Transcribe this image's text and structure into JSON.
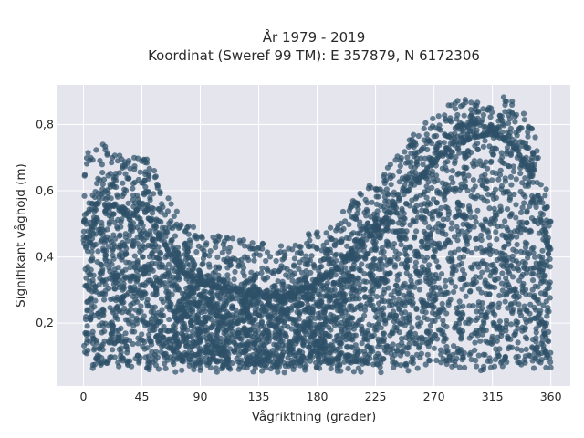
{
  "chart_data": {
    "type": "scatter",
    "title": "År 1979 - 2019",
    "subtitle": "Koordinat (Sweref 99 TM): E 357879, N 6172306",
    "xlabel": "Vågriktning (grader)",
    "ylabel": "Signifikant våghöjd (m)",
    "xlim": [
      -20,
      375
    ],
    "ylim": [
      0.01,
      0.92
    ],
    "xticks": [
      0,
      45,
      90,
      135,
      180,
      225,
      270,
      315,
      360
    ],
    "xtick_labels": [
      "0",
      "45",
      "90",
      "135",
      "180",
      "225",
      "270",
      "315",
      "360"
    ],
    "yticks": [
      0.2,
      0.4,
      0.6,
      0.8
    ],
    "ytick_labels": [
      "0,2",
      "0,4",
      "0,6",
      "0,8"
    ],
    "grid": true,
    "legend": "none",
    "colors": {
      "points": "#2e5068",
      "plot_bg": "#e5e5ee",
      "grid": "#ffffff"
    },
    "x_range": [
      0,
      360
    ],
    "y_min": 0.05,
    "upper_envelope": {
      "x": [
        0,
        10,
        22,
        35,
        45,
        55,
        65,
        75,
        90,
        110,
        135,
        160,
        180,
        200,
        215,
        230,
        245,
        260,
        275,
        290,
        300,
        315,
        330,
        345,
        355,
        360
      ],
      "y": [
        0.72,
        0.74,
        0.77,
        0.7,
        0.72,
        0.66,
        0.58,
        0.52,
        0.48,
        0.46,
        0.45,
        0.43,
        0.49,
        0.55,
        0.6,
        0.66,
        0.73,
        0.8,
        0.85,
        0.88,
        0.87,
        0.88,
        0.89,
        0.82,
        0.64,
        0.58
      ]
    },
    "dense_envelope": {
      "x": [
        0,
        10,
        22,
        35,
        45,
        55,
        65,
        75,
        90,
        110,
        135,
        160,
        180,
        200,
        215,
        230,
        245,
        260,
        275,
        290,
        300,
        315,
        330,
        345,
        355,
        360
      ],
      "y": [
        0.44,
        0.5,
        0.55,
        0.52,
        0.55,
        0.48,
        0.42,
        0.36,
        0.32,
        0.3,
        0.28,
        0.28,
        0.32,
        0.38,
        0.44,
        0.5,
        0.58,
        0.64,
        0.7,
        0.74,
        0.76,
        0.77,
        0.74,
        0.64,
        0.48,
        0.4
      ]
    }
  }
}
